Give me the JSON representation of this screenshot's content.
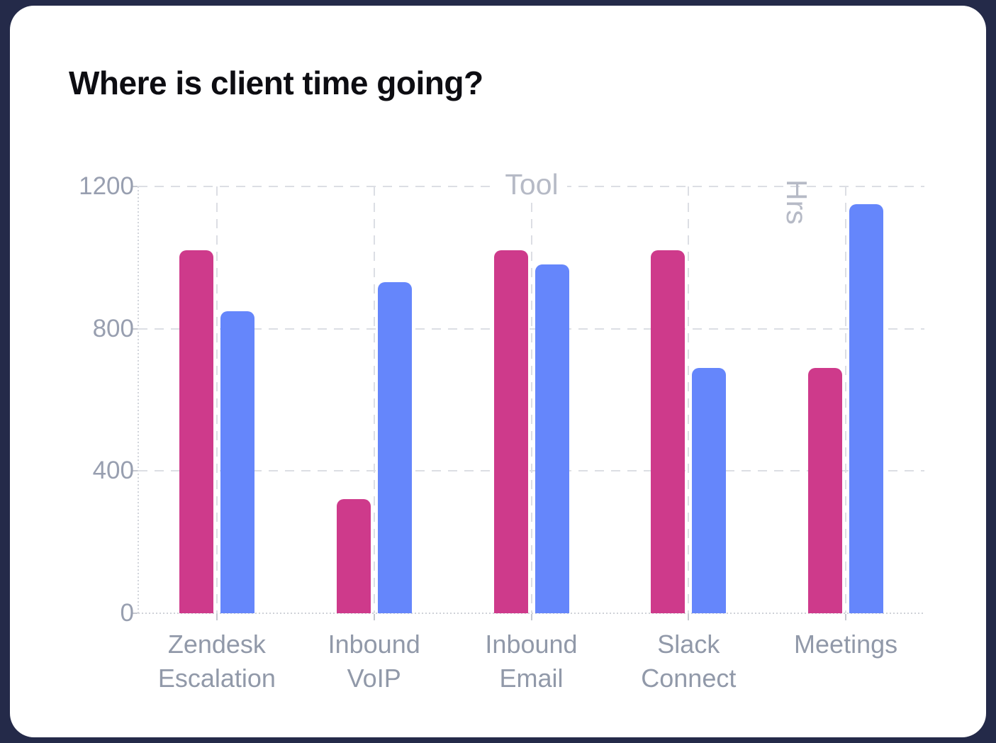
{
  "page": {
    "background_color": "#242a49",
    "card_color": "#ffffff",
    "title_color": "#0d0d12"
  },
  "header": {
    "title": "Where is client time going?"
  },
  "chart_data": {
    "type": "bar",
    "title": "Where is client time going?",
    "xlabel": "Tool",
    "ylabel": "Hrs",
    "categories": [
      "Zendesk Escalation",
      "Inbound VoIP",
      "Inbound Email",
      "Slack Connect",
      "Meetings"
    ],
    "category_label_lines": [
      [
        "Zendesk",
        "Escalation"
      ],
      [
        "Inbound",
        "VoIP"
      ],
      [
        "Inbound",
        "Email"
      ],
      [
        "Slack",
        "Connect"
      ],
      [
        "Meetings"
      ]
    ],
    "series": [
      {
        "name": "pink",
        "color": "#ce3a8b",
        "values": [
          1020,
          320,
          1020,
          1020,
          690
        ]
      },
      {
        "name": "blue",
        "color": "#6586fb",
        "values": [
          850,
          930,
          980,
          690,
          1150
        ]
      }
    ],
    "ylim": [
      0,
      1200
    ],
    "yticks": [
      0,
      400,
      800,
      1200
    ],
    "grid": true,
    "legend": false,
    "grid_color": "#dcdee4",
    "tick_label_color": "#989fb0",
    "category_label_color": "#9199a9",
    "axis_title_color": "#b6bac6"
  }
}
